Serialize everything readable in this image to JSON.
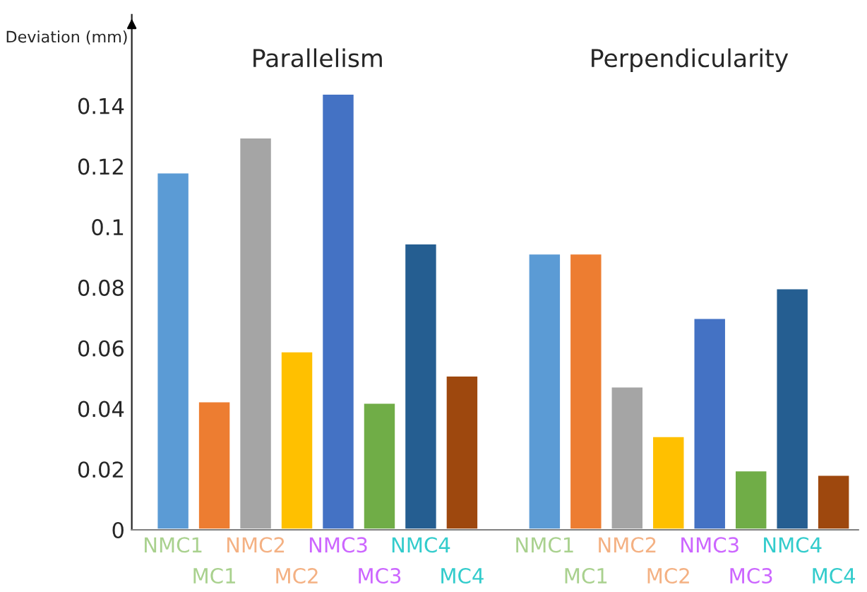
{
  "chart_data": {
    "type": "bar",
    "ylabel": "Deviation (mm)",
    "annotations": [
      "Parallelism",
      "Perpendicularity"
    ],
    "categories": [
      "NMC1",
      "MC1",
      "NMC2",
      "MC2",
      "NMC3",
      "MC3",
      "NMC4",
      "MC4",
      null,
      "NMC1",
      "MC1",
      "NMC2",
      "MC2",
      "NMC3",
      "MC3",
      "NMC4",
      "MC4"
    ],
    "values": [
      0.118,
      0.0425,
      0.1296,
      0.059,
      0.144,
      0.042,
      0.0946,
      0.051,
      null,
      0.0913,
      0.0913,
      0.0474,
      0.031,
      0.07,
      0.0197,
      0.0798,
      0.0182
    ],
    "colors": [
      "#5b9bd5",
      "#ed7d31",
      "#a5a5a5",
      "#ffc000",
      "#4472c4",
      "#70ad47",
      "#255e91",
      "#9e480e",
      null,
      "#5b9bd5",
      "#ed7d31",
      "#a5a5a5",
      "#ffc000",
      "#4472c4",
      "#70ad47",
      "#255e91",
      "#9e480e"
    ],
    "ylim": [
      0,
      0.17
    ],
    "yticks": [
      0,
      0.02,
      0.04,
      0.06,
      0.08,
      0.1,
      0.12,
      0.14
    ],
    "grid": false,
    "legend": false
  }
}
